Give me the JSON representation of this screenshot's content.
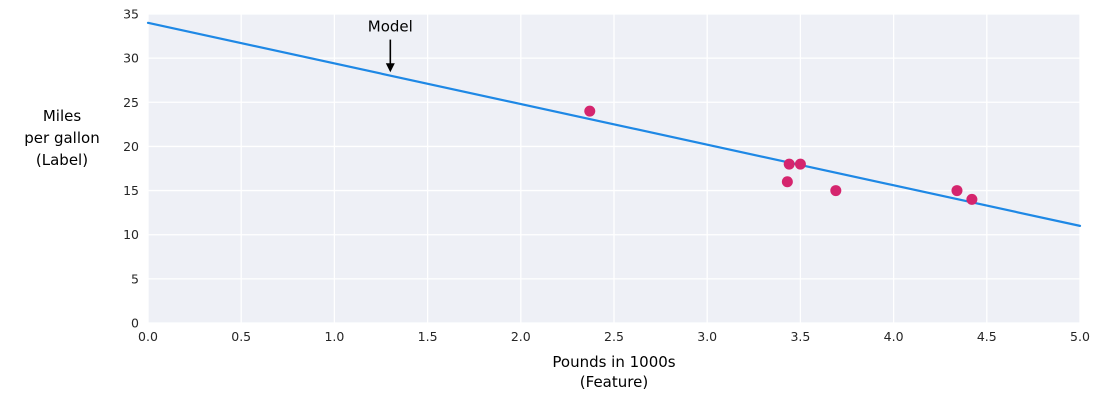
{
  "chart_data": {
    "type": "scatter",
    "title": "",
    "xlabel_lines": [
      "Pounds in 1000s",
      "(Feature)"
    ],
    "ylabel_lines": [
      "Miles",
      "per gallon",
      "(Label)"
    ],
    "xlim": [
      0,
      5
    ],
    "ylim": [
      0,
      35
    ],
    "xticks": [
      0.0,
      0.5,
      1.0,
      1.5,
      2.0,
      2.5,
      3.0,
      3.5,
      4.0,
      4.5,
      5.0
    ],
    "xtick_labels": [
      "0.0",
      "0.5",
      "1.0",
      "1.5",
      "2.0",
      "2.5",
      "3.0",
      "3.5",
      "4.0",
      "4.5",
      "5.0"
    ],
    "yticks": [
      0,
      5,
      10,
      15,
      20,
      25,
      30,
      35
    ],
    "ytick_labels": [
      "0",
      "5",
      "10",
      "15",
      "20",
      "25",
      "30",
      "35"
    ],
    "grid": true,
    "legend": "none",
    "points": {
      "series_name": "cars",
      "x": [
        2.37,
        3.44,
        3.5,
        3.43,
        3.69,
        4.34,
        4.42
      ],
      "y": [
        24,
        18,
        18,
        16,
        15,
        15,
        14
      ]
    },
    "model_line": {
      "x": [
        0,
        5
      ],
      "y": [
        34,
        11
      ]
    },
    "annotation": {
      "label": "Model",
      "x": 1.3,
      "label_y": 33.6,
      "arrow_from_y": 32.1,
      "arrow_to_y": 28.4
    },
    "colors": {
      "plot_bg": "#eef0f6",
      "grid": "#ffffff",
      "line": "#1e88e5",
      "points": "#d5256e",
      "text": "#000000",
      "tick_text": "#262626"
    }
  }
}
